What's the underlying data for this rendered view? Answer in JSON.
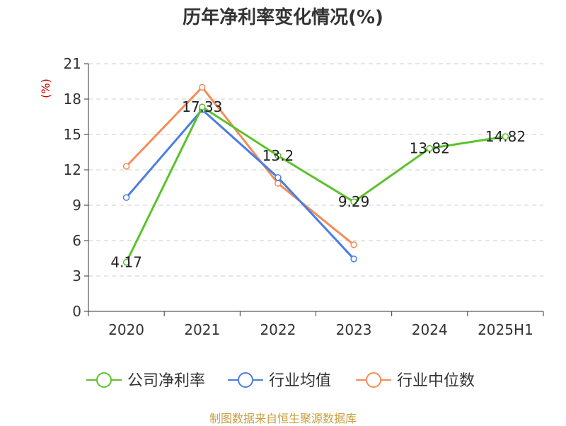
{
  "page_title": "历年净利率变化情况(%)",
  "source": "制图数据来自恒生聚源数据库",
  "colors": {
    "company": "#5cc22a",
    "industry_avg": "#4a7ee0",
    "industry_median": "#f58c58",
    "ylabel": "#cc0000",
    "grid": "#cccccc",
    "axis": "#333333",
    "source": "#c8a040"
  },
  "chart_data": {
    "type": "line",
    "title": "历年净利率变化情况(%)",
    "xlabel": "",
    "ylabel": "(%)",
    "categories": [
      "2020",
      "2021",
      "2022",
      "2023",
      "2024",
      "2025H1"
    ],
    "ylim": [
      0,
      21
    ],
    "yticks": [
      0,
      3,
      6,
      9,
      12,
      15,
      18,
      21
    ],
    "grid": true,
    "legend_position": "bottom",
    "series": [
      {
        "name": "公司净利率",
        "key": "company",
        "values": [
          4.17,
          17.33,
          13.2,
          9.29,
          13.82,
          14.82
        ],
        "labels": [
          "4.17",
          "17.33",
          "13.2",
          "9.29",
          "13.82",
          "14.82"
        ]
      },
      {
        "name": "行业均值",
        "key": "industry_avg",
        "values": [
          9.65,
          17.1,
          11.35,
          4.45,
          null,
          null
        ]
      },
      {
        "name": "行业中位数",
        "key": "industry_median",
        "values": [
          12.3,
          19.0,
          10.85,
          5.65,
          null,
          null
        ]
      }
    ]
  }
}
